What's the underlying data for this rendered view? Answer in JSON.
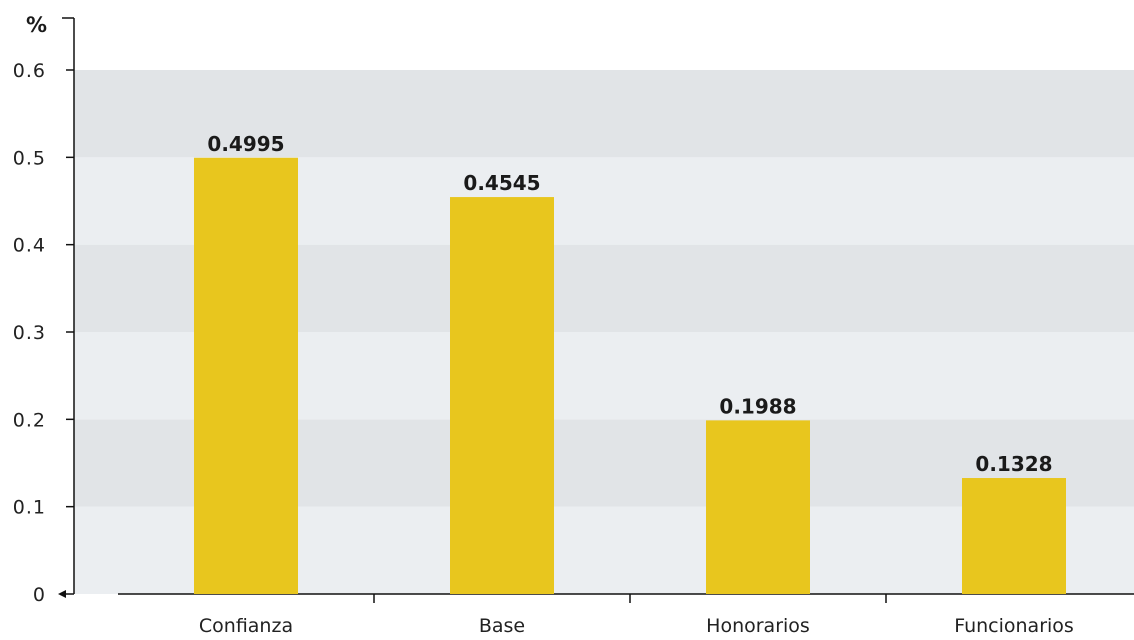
{
  "chart_data": {
    "type": "bar",
    "categories": [
      "Confianza",
      "Base",
      "Honorarios",
      "Funcionarios"
    ],
    "values": [
      0.4995,
      0.4545,
      0.1988,
      0.1328
    ],
    "data_labels": [
      "0.4995",
      "0.4545",
      "0.1988",
      "0.1328"
    ],
    "y_unit_label": "%",
    "y_ticks": [
      0,
      0.1,
      0.2,
      0.3,
      0.4,
      0.5,
      0.6
    ],
    "y_tick_labels": [
      "0",
      "0.1",
      "0.2",
      "0.3",
      "0.4",
      "0.5",
      "0.6"
    ],
    "ylim": [
      0,
      0.6
    ],
    "title": "",
    "xlabel": "",
    "ylabel": "",
    "grid": "horizontal alternating bands",
    "legend": "none",
    "colors": {
      "bar": "#E8C61E",
      "band_light": "#EBEEF1",
      "band_dark": "#E1E4E7",
      "axis": "#111111"
    }
  }
}
